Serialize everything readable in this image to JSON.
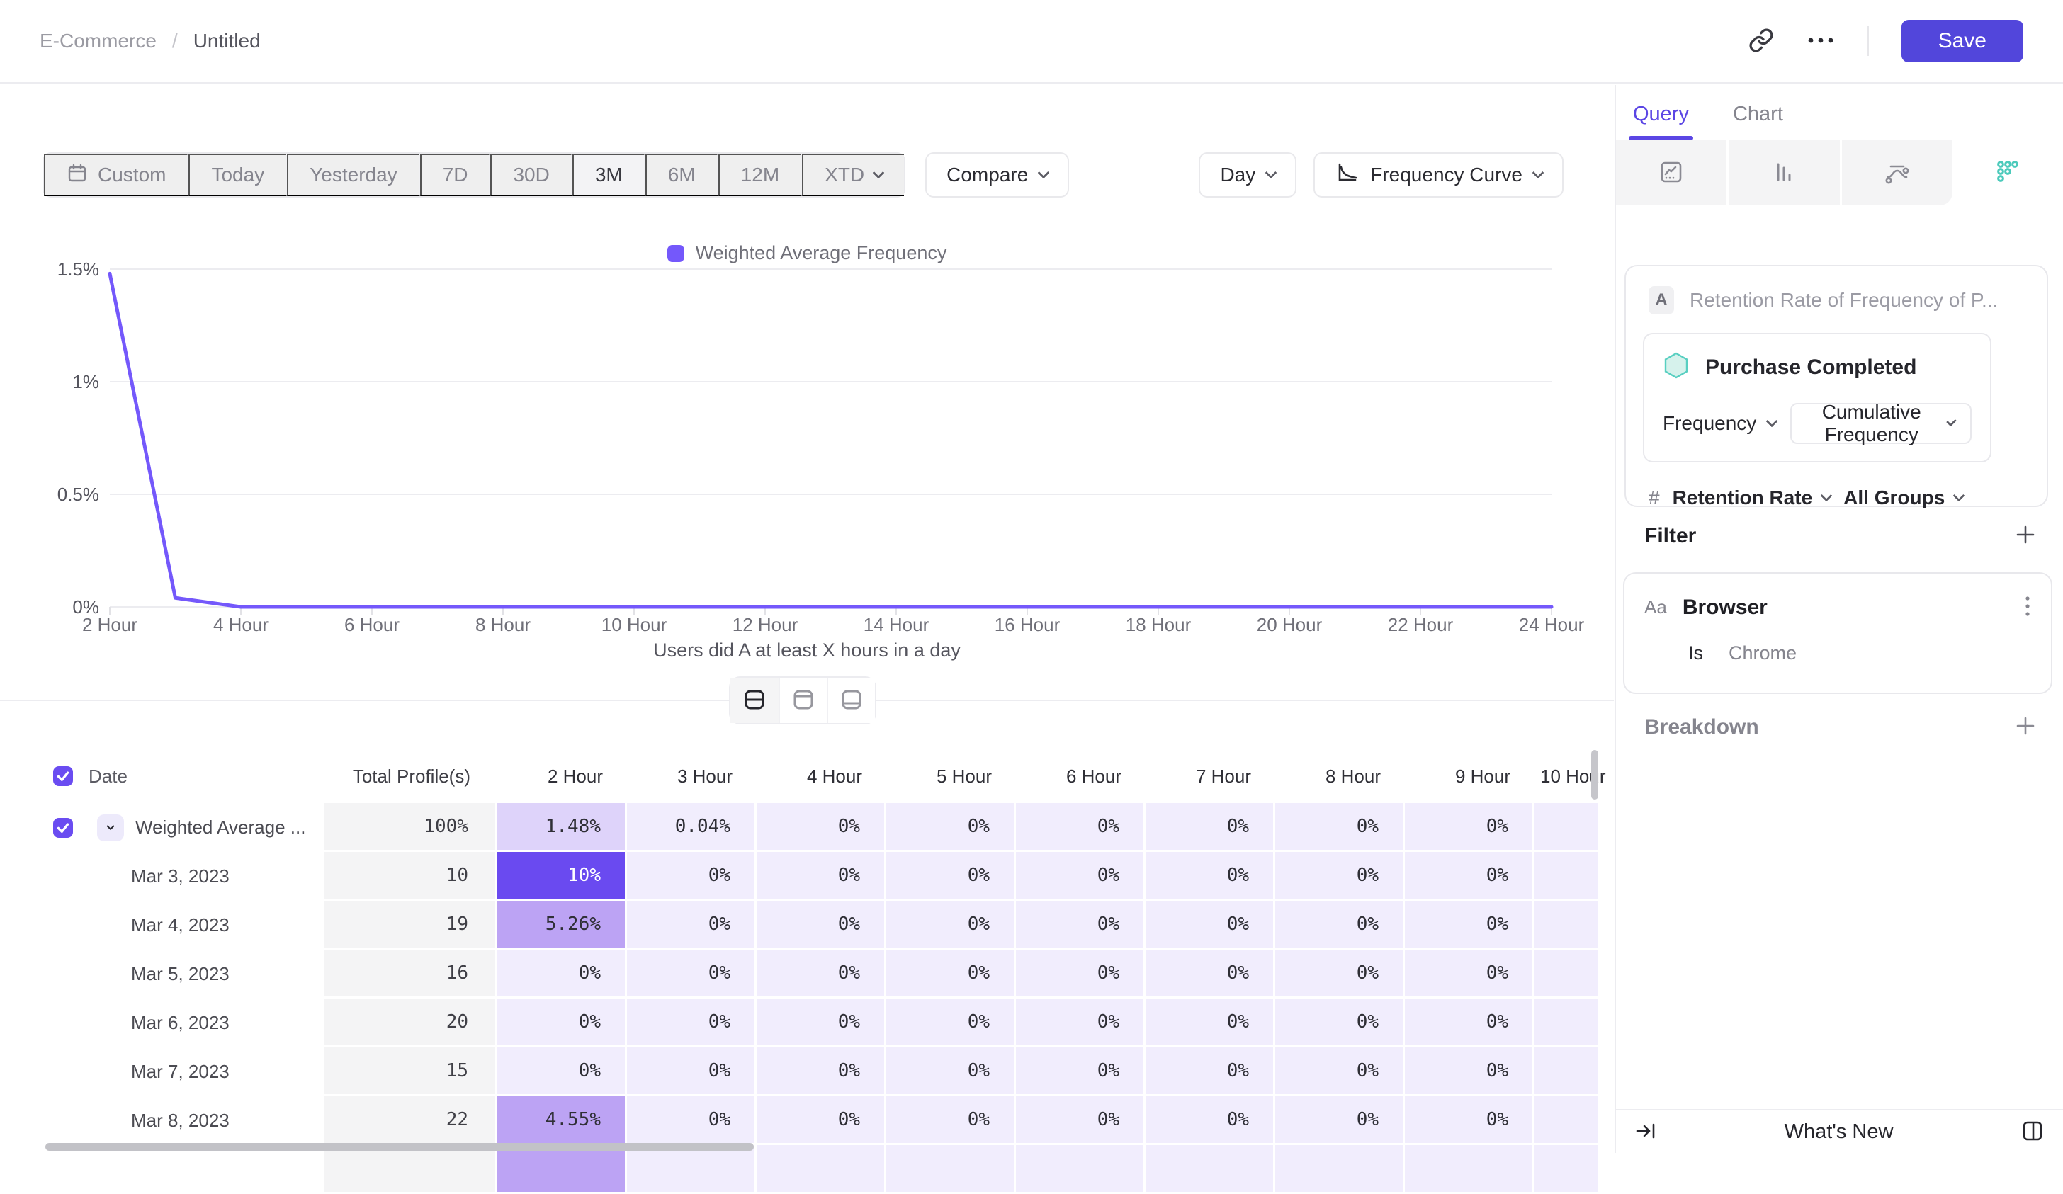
{
  "header": {
    "breadcrumb_parent": "E-Commerce",
    "breadcrumb_sep": "/",
    "breadcrumb_current": "Untitled",
    "save_label": "Save"
  },
  "toolbar": {
    "ranges": [
      "Custom",
      "Today",
      "Yesterday",
      "7D",
      "30D",
      "3M",
      "6M",
      "12M",
      "XTD"
    ],
    "selected_range": "3M",
    "compare_label": "Compare",
    "granularity_label": "Day",
    "chart_type_label": "Frequency Curve"
  },
  "chart": {
    "legend": "Weighted Average Frequency",
    "xlabel": "Users did A at least X hours in a day"
  },
  "chart_data": {
    "type": "line",
    "title": "",
    "xlabel": "Users did A at least X hours in a day",
    "ylabel": "",
    "xlim": [
      2,
      24
    ],
    "ylim": [
      0,
      1.5
    ],
    "grid": "horizontal",
    "legend_position": "top-center",
    "y_ticks": [
      0,
      0.5,
      1,
      1.5
    ],
    "y_tick_labels": [
      "0%",
      "0.5%",
      "1%",
      "1.5%"
    ],
    "x_ticks": [
      2,
      4,
      6,
      8,
      10,
      12,
      14,
      16,
      18,
      20,
      22,
      24
    ],
    "x_tick_labels": [
      "2 Hour",
      "4 Hour",
      "6 Hour",
      "8 Hour",
      "10 Hour",
      "12 Hour",
      "14 Hour",
      "16 Hour",
      "18 Hour",
      "20 Hour",
      "22 Hour",
      "24 Hour"
    ],
    "series": [
      {
        "name": "Weighted Average Frequency",
        "x": [
          2,
          3,
          4,
          5,
          6,
          7,
          8,
          9,
          10,
          11,
          12,
          13,
          14,
          15,
          16,
          17,
          18,
          19,
          20,
          21,
          22,
          23,
          24
        ],
        "values": [
          1.48,
          0.04,
          0,
          0,
          0,
          0,
          0,
          0,
          0,
          0,
          0,
          0,
          0,
          0,
          0,
          0,
          0,
          0,
          0,
          0,
          0,
          0,
          0
        ]
      }
    ]
  },
  "colors": {
    "accent": "#5b46e4",
    "save_bg": "#5246db",
    "line": "#7458fb",
    "teal": "#4ccabb",
    "cell_zero": "#f1edfd",
    "cell_low": "#ded3fa",
    "cell_mid": "#bca3f4",
    "cell_high": "#6a4af0"
  },
  "table": {
    "columns": [
      "Date",
      "Total Profile(s)",
      "2 Hour",
      "3 Hour",
      "4 Hour",
      "5 Hour",
      "6 Hour",
      "7 Hour",
      "8 Hour",
      "9 Hour",
      "10 Hour"
    ],
    "rows": [
      {
        "label": "Weighted Average ...",
        "checkbox": true,
        "expander": true,
        "total": "100%",
        "values": [
          "1.48%",
          "0.04%",
          "0%",
          "0%",
          "0%",
          "0%",
          "0%",
          "0%",
          ""
        ],
        "levels": [
          "low",
          "zero",
          "zero",
          "zero",
          "zero",
          "zero",
          "zero",
          "zero",
          "zero"
        ]
      },
      {
        "label": "Mar 3, 2023",
        "total": "10",
        "values": [
          "10%",
          "0%",
          "0%",
          "0%",
          "0%",
          "0%",
          "0%",
          "0%",
          ""
        ],
        "levels": [
          "high",
          "zero",
          "zero",
          "zero",
          "zero",
          "zero",
          "zero",
          "zero",
          "zero"
        ]
      },
      {
        "label": "Mar 4, 2023",
        "total": "19",
        "values": [
          "5.26%",
          "0%",
          "0%",
          "0%",
          "0%",
          "0%",
          "0%",
          "0%",
          ""
        ],
        "levels": [
          "mid",
          "zero",
          "zero",
          "zero",
          "zero",
          "zero",
          "zero",
          "zero",
          "zero"
        ]
      },
      {
        "label": "Mar 5, 2023",
        "total": "16",
        "values": [
          "0%",
          "0%",
          "0%",
          "0%",
          "0%",
          "0%",
          "0%",
          "0%",
          ""
        ],
        "levels": [
          "zero",
          "zero",
          "zero",
          "zero",
          "zero",
          "zero",
          "zero",
          "zero",
          "zero"
        ]
      },
      {
        "label": "Mar 6, 2023",
        "total": "20",
        "values": [
          "0%",
          "0%",
          "0%",
          "0%",
          "0%",
          "0%",
          "0%",
          "0%",
          ""
        ],
        "levels": [
          "zero",
          "zero",
          "zero",
          "zero",
          "zero",
          "zero",
          "zero",
          "zero",
          "zero"
        ]
      },
      {
        "label": "Mar 7, 2023",
        "total": "15",
        "values": [
          "0%",
          "0%",
          "0%",
          "0%",
          "0%",
          "0%",
          "0%",
          "0%",
          ""
        ],
        "levels": [
          "zero",
          "zero",
          "zero",
          "zero",
          "zero",
          "zero",
          "zero",
          "zero",
          "zero"
        ]
      },
      {
        "label": "Mar 8, 2023",
        "total": "22",
        "values": [
          "4.55%",
          "0%",
          "0%",
          "0%",
          "0%",
          "0%",
          "0%",
          "0%",
          ""
        ],
        "levels": [
          "mid",
          "zero",
          "zero",
          "zero",
          "zero",
          "zero",
          "zero",
          "zero",
          "zero"
        ]
      },
      {
        "label": "",
        "total": "",
        "partial": true,
        "values": [
          "",
          "",
          "",
          "",
          "",
          "",
          "",
          "",
          ""
        ],
        "levels": [
          "mid",
          "zero",
          "zero",
          "zero",
          "zero",
          "zero",
          "zero",
          "zero",
          "zero"
        ]
      }
    ]
  },
  "panel": {
    "tab_query": "Query",
    "tab_chart": "Chart",
    "query": {
      "step_letter": "A",
      "title_placeholder": "Retention Rate of Frequency of P...",
      "event_name": "Purchase Completed",
      "measure": "Frequency",
      "measure_mode": "Cumulative Frequency",
      "agg_symbol": "#",
      "agg_label": "Retention Rate",
      "group_label": "All Groups"
    },
    "filter": {
      "heading": "Filter",
      "prop_type": "Aa",
      "property": "Browser",
      "operator": "Is",
      "value": "Chrome"
    },
    "breakdown": {
      "heading": "Breakdown"
    },
    "footer": {
      "whats_new": "What's New"
    }
  }
}
